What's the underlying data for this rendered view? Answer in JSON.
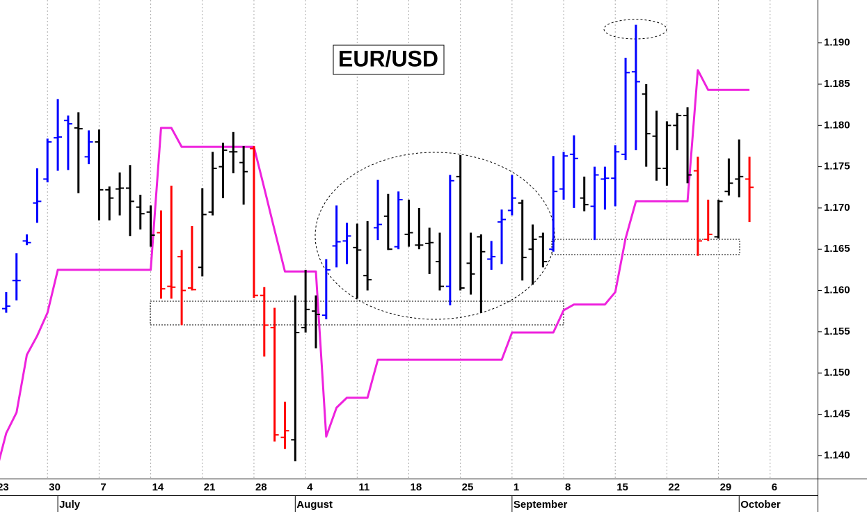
{
  "chart_data": {
    "type": "ohlc",
    "title": "EUR/USD",
    "x": [
      1,
      2,
      3,
      4,
      5,
      6,
      7,
      8,
      9,
      10,
      11,
      12,
      13,
      14,
      15,
      16,
      17,
      18,
      19,
      20,
      21,
      22,
      23,
      24,
      25,
      26,
      27,
      28,
      29,
      30,
      31,
      32,
      33,
      34,
      35,
      36,
      37,
      38,
      39,
      40,
      41,
      42,
      43,
      44,
      45,
      46,
      47,
      48,
      49,
      50,
      51,
      52,
      53,
      54,
      55,
      56,
      57,
      58,
      59,
      60,
      61,
      62,
      63,
      64,
      65,
      66,
      67,
      68,
      69,
      70,
      71,
      72,
      73
    ],
    "open": [
      1.1578,
      1.1612,
      1.166,
      1.1706,
      1.1735,
      1.1785,
      1.1806,
      1.1797,
      1.1762,
      1.178,
      1.1722,
      1.1723,
      1.1724,
      1.1701,
      1.1695,
      1.167,
      1.1605,
      1.1641,
      1.1603,
      1.1628,
      1.1695,
      1.175,
      1.1768,
      1.1755,
      1.1772,
      1.1594,
      1.1555,
      1.1422,
      1.1419,
      1.1555,
      1.1575,
      1.157,
      1.1654,
      1.166,
      1.1652,
      1.1618,
      1.1676,
      1.169,
      1.1653,
      1.1668,
      1.1655,
      1.1657,
      1.1635,
      1.1605,
      1.1738,
      1.1633,
      1.1665,
      1.1638,
      1.1683,
      1.1697,
      1.1706,
      1.165,
      1.1665,
      1.165,
      1.1723,
      1.1765,
      1.1712,
      1.1702,
      1.1735,
      1.1736,
      1.1765,
      1.1865,
      1.1838,
      1.1787,
      1.1748,
      1.18,
      1.1812,
      1.1745,
      1.1662,
      1.1665,
      1.172,
      1.1735,
      1.1735
    ],
    "high": [
      1.1598,
      1.1645,
      1.1668,
      1.1748,
      1.1784,
      1.1832,
      1.1812,
      1.1816,
      1.1794,
      1.1795,
      1.1726,
      1.1743,
      1.1752,
      1.1716,
      1.1703,
      1.1697,
      1.1727,
      1.1649,
      1.1678,
      1.1724,
      1.1768,
      1.1779,
      1.1792,
      1.1775,
      1.1775,
      1.1604,
      1.1579,
      1.1465,
      1.1594,
      1.1625,
      1.1594,
      1.1638,
      1.1703,
      1.1682,
      1.1681,
      1.1684,
      1.1734,
      1.1717,
      1.172,
      1.171,
      1.17,
      1.1676,
      1.167,
      1.174,
      1.1764,
      1.167,
      1.1668,
      1.166,
      1.1698,
      1.174,
      1.171,
      1.168,
      1.167,
      1.1763,
      1.1768,
      1.1788,
      1.1738,
      1.175,
      1.175,
      1.1776,
      1.1882,
      1.1922,
      1.185,
      1.1818,
      1.1805,
      1.1815,
      1.1822,
      1.1762,
      1.171,
      1.171,
      1.176,
      1.1783,
      1.1762
    ],
    "low": [
      1.1573,
      1.1588,
      1.1655,
      1.1682,
      1.1731,
      1.1745,
      1.1746,
      1.1718,
      1.1753,
      1.1685,
      1.1685,
      1.1691,
      1.1666,
      1.1674,
      1.1653,
      1.159,
      1.159,
      1.1558,
      1.16,
      1.1617,
      1.1691,
      1.1712,
      1.1742,
      1.1704,
      1.1591,
      1.152,
      1.1417,
      1.1408,
      1.1393,
      1.1549,
      1.153,
      1.1565,
      1.1628,
      1.1632,
      1.159,
      1.16,
      1.1661,
      1.1649,
      1.165,
      1.1653,
      1.165,
      1.162,
      1.16,
      1.1582,
      1.16,
      1.1595,
      1.1573,
      1.1625,
      1.1632,
      1.1691,
      1.1612,
      1.1607,
      1.1628,
      1.1647,
      1.171,
      1.17,
      1.1696,
      1.1661,
      1.1698,
      1.1702,
      1.1758,
      1.177,
      1.175,
      1.1733,
      1.1727,
      1.177,
      1.173,
      1.1642,
      1.166,
      1.1663,
      1.1715,
      1.1713,
      1.1683
    ],
    "close": [
      1.1581,
      1.1612,
      1.1658,
      1.1708,
      1.178,
      1.1786,
      1.1802,
      1.1796,
      1.178,
      1.1722,
      1.1712,
      1.1724,
      1.1708,
      1.1693,
      1.1667,
      1.1602,
      1.1604,
      1.16,
      1.1601,
      1.1692,
      1.1748,
      1.177,
      1.1768,
      1.1744,
      1.1594,
      1.1558,
      1.1425,
      1.143,
      1.1549,
      1.1577,
      1.1571,
      1.1625,
      1.1659,
      1.1666,
      1.1649,
      1.1613,
      1.168,
      1.165,
      1.171,
      1.167,
      1.1655,
      1.1658,
      1.1605,
      1.1733,
      1.1603,
      1.162,
      1.1647,
      1.1641,
      1.1686,
      1.1712,
      1.164,
      1.1662,
      1.1635,
      1.172,
      1.1763,
      1.176,
      1.1704,
      1.174,
      1.1736,
      1.1768,
      1.1864,
      1.1853,
      1.179,
      1.1748,
      1.18,
      1.1812,
      1.174,
      1.166,
      1.1668,
      1.1708,
      1.173,
      1.1738,
      1.1725
    ],
    "bar_colors": [
      "#0000ff",
      "#0000ff",
      "#0000ff",
      "#0000ff",
      "#0000ff",
      "#0000ff",
      "#0000ff",
      "#000000",
      "#0000ff",
      "#000000",
      "#000000",
      "#000000",
      "#000000",
      "#000000",
      "#000000",
      "#ff0000",
      "#ff0000",
      "#ff0000",
      "#ff0000",
      "#000000",
      "#000000",
      "#000000",
      "#000000",
      "#000000",
      "#ff0000",
      "#ff0000",
      "#ff0000",
      "#ff0000",
      "#000000",
      "#000000",
      "#000000",
      "#0000ff",
      "#0000ff",
      "#0000ff",
      "#000000",
      "#000000",
      "#0000ff",
      "#000000",
      "#0000ff",
      "#000000",
      "#000000",
      "#000000",
      "#000000",
      "#0000ff",
      "#000000",
      "#000000",
      "#000000",
      "#0000ff",
      "#0000ff",
      "#0000ff",
      "#000000",
      "#000000",
      "#000000",
      "#0000ff",
      "#0000ff",
      "#0000ff",
      "#000000",
      "#0000ff",
      "#0000ff",
      "#0000ff",
      "#0000ff",
      "#0000ff",
      "#000000",
      "#000000",
      "#000000",
      "#000000",
      "#000000",
      "#ff0000",
      "#ff0000",
      "#000000",
      "#000000",
      "#000000",
      "#ff0000"
    ],
    "overlay": {
      "type": "line",
      "color": "#ee22dd",
      "x": [
        0,
        1,
        2,
        3,
        4,
        5,
        6,
        7,
        8,
        9,
        10,
        11,
        12,
        13,
        14,
        15,
        16,
        17,
        18,
        19,
        20,
        21,
        22,
        23,
        24,
        25,
        26,
        27,
        28,
        29,
        30,
        31,
        32,
        33,
        34,
        35,
        36,
        37,
        38,
        39,
        40,
        41,
        42,
        43,
        44,
        45,
        46,
        47,
        48,
        49,
        50,
        51,
        52,
        53,
        54,
        55,
        56,
        57,
        58,
        59,
        60,
        61,
        62,
        63,
        64,
        65,
        66,
        67,
        68,
        69,
        70,
        71,
        72,
        73
      ],
      "values": [
        1.1379,
        1.1427,
        1.1452,
        1.1522,
        1.1545,
        1.1573,
        1.1625,
        1.1625,
        1.1625,
        1.1625,
        1.1625,
        1.1625,
        1.1625,
        1.1625,
        1.1625,
        1.1625,
        1.1797,
        1.1797,
        1.1774,
        1.1774,
        1.1774,
        1.1774,
        1.1774,
        1.1774,
        1.1774,
        1.1774,
        1.1724,
        1.1673,
        1.1623,
        1.1623,
        1.1623,
        1.1623,
        1.1423,
        1.1458,
        1.147,
        1.147,
        1.147,
        1.1516,
        1.1516,
        1.1516,
        1.1516,
        1.1516,
        1.1516,
        1.1516,
        1.1516,
        1.1516,
        1.1516,
        1.1516,
        1.1516,
        1.1516,
        1.1549,
        1.1549,
        1.1549,
        1.1549,
        1.1549,
        1.1576,
        1.1583,
        1.1583,
        1.1583,
        1.1583,
        1.1598,
        1.1663,
        1.1708,
        1.1708,
        1.1708,
        1.1708,
        1.1708,
        1.1708,
        1.1867,
        1.1843,
        1.1843,
        1.1843,
        1.1843,
        1.1843
      ]
    },
    "xlim": [
      0.4,
      79.6
    ],
    "xticks": [
      {
        "value": 0,
        "label": "23"
      },
      {
        "value": 5,
        "label": "30"
      },
      {
        "value": 10,
        "label": "7"
      },
      {
        "value": 15,
        "label": "14"
      },
      {
        "value": 20,
        "label": "21"
      },
      {
        "value": 25,
        "label": "28"
      },
      {
        "value": 30,
        "label": "4"
      },
      {
        "value": 35,
        "label": "11"
      },
      {
        "value": 40,
        "label": "18"
      },
      {
        "value": 45,
        "label": "25"
      },
      {
        "value": 50,
        "label": "1"
      },
      {
        "value": 55,
        "label": "8"
      },
      {
        "value": 60,
        "label": "15"
      },
      {
        "value": 65,
        "label": "22"
      },
      {
        "value": 70,
        "label": "29"
      },
      {
        "value": 75,
        "label": "6"
      }
    ],
    "month_ticks": [
      {
        "value": 6,
        "label": "July"
      },
      {
        "value": 29,
        "label": "August"
      },
      {
        "value": 50,
        "label": "September"
      },
      {
        "value": 72,
        "label": "October"
      }
    ],
    "ylim": [
      1.1372,
      1.1952
    ],
    "yticks": [
      {
        "value": 1.14,
        "label": "1.140"
      },
      {
        "value": 1.145,
        "label": "1.145"
      },
      {
        "value": 1.15,
        "label": "1.150"
      },
      {
        "value": 1.155,
        "label": "1.155"
      },
      {
        "value": 1.16,
        "label": "1.160"
      },
      {
        "value": 1.165,
        "label": "1.165"
      },
      {
        "value": 1.17,
        "label": "1.170"
      },
      {
        "value": 1.175,
        "label": "1.175"
      },
      {
        "value": 1.18,
        "label": "1.180"
      },
      {
        "value": 1.185,
        "label": "1.185"
      },
      {
        "value": 1.19,
        "label": "1.190"
      }
    ],
    "grid": true
  }
}
